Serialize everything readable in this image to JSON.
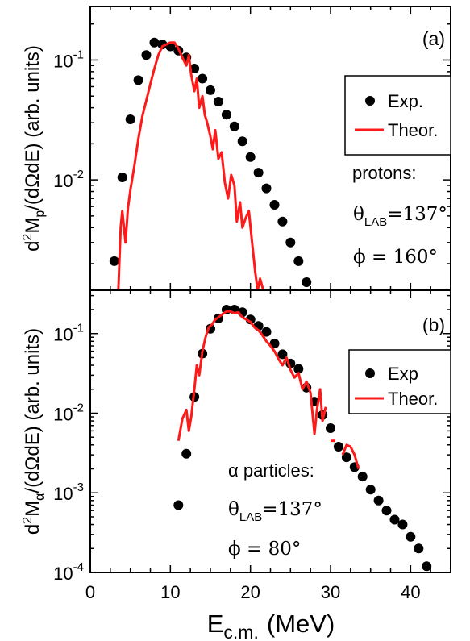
{
  "xlabel": "E",
  "xlabel_sub": "c.m.",
  "xlabel_unit": "(MeV)",
  "x_ticks": [
    "0",
    "10",
    "20",
    "30",
    "40"
  ],
  "chart_data": [
    {
      "type": "scatter",
      "panel_label": "(a)",
      "xlim": [
        0,
        45
      ],
      "ylim": [
        0.0012,
        0.28
      ],
      "yscale": "log",
      "y_ticks": [
        {
          "value": 0.1,
          "base": "10",
          "exp": "-1"
        },
        {
          "value": 0.01,
          "base": "10",
          "exp": "-2"
        }
      ],
      "ylabel": {
        "pre": "d",
        "sup": "2",
        "mid": "M",
        "sub": "p",
        "post": "/(dΩdE) (arb. units)"
      },
      "legend": {
        "position": "top-right",
        "exp_label": "Exp.",
        "theor_label": "Theor."
      },
      "annotations": {
        "species": "protons:",
        "theta_symbol": "θ",
        "theta_sub": "LAB",
        "theta_value": "=137°",
        "phi_text": "ϕ = 160°"
      },
      "series": [
        {
          "name": "Exp.",
          "kind": "points",
          "color": "#000000",
          "x": [
            3,
            4,
            5,
            6,
            7,
            8,
            9,
            10,
            11,
            12,
            13,
            14,
            15,
            16,
            17,
            18,
            19,
            20,
            21,
            22,
            23,
            24,
            25,
            26,
            27
          ],
          "y": [
            0.0021,
            0.0105,
            0.032,
            0.068,
            0.11,
            0.14,
            0.135,
            0.13,
            0.12,
            0.105,
            0.085,
            0.07,
            0.056,
            0.045,
            0.035,
            0.028,
            0.021,
            0.0155,
            0.0115,
            0.0085,
            0.0062,
            0.0045,
            0.003,
            0.0021,
            0.0014
          ]
        },
        {
          "name": "Theor.",
          "kind": "line",
          "color": "#ff1a1a",
          "x": [
            3.5,
            3.8,
            4.0,
            4.4,
            4.7,
            5.0,
            5.5,
            6.0,
            6.5,
            7.0,
            7.5,
            8.0,
            8.5,
            9.0,
            9.5,
            10.0,
            10.5,
            11.0,
            11.5,
            12.0,
            12.3,
            12.6,
            13.0,
            13.3,
            13.6,
            14.0,
            14.3,
            14.6,
            15.0,
            15.3,
            15.6,
            16.0,
            16.4,
            16.8,
            17.2,
            17.6,
            18.0,
            18.3,
            18.7,
            19.0,
            19.4,
            19.8,
            20.2,
            20.6,
            20.9,
            21.2,
            21.6
          ],
          "y": [
            0.0012,
            0.004,
            0.0055,
            0.003,
            0.0058,
            0.0082,
            0.013,
            0.022,
            0.034,
            0.046,
            0.063,
            0.085,
            0.11,
            0.13,
            0.135,
            0.14,
            0.14,
            0.125,
            0.105,
            0.09,
            0.11,
            0.075,
            0.055,
            0.07,
            0.04,
            0.05,
            0.035,
            0.03,
            0.023,
            0.018,
            0.026,
            0.015,
            0.017,
            0.0095,
            0.007,
            0.011,
            0.009,
            0.0045,
            0.0065,
            0.004,
            0.0048,
            0.0055,
            0.003,
            0.0017,
            0.0012,
            0.0015,
            0.0012
          ]
        }
      ]
    },
    {
      "type": "scatter",
      "panel_label": "(b)",
      "xlim": [
        0,
        45
      ],
      "ylim": [
        0.0001,
        0.35
      ],
      "yscale": "log",
      "y_ticks": [
        {
          "value": 0.1,
          "base": "10",
          "exp": "-1"
        },
        {
          "value": 0.01,
          "base": "10",
          "exp": "-2"
        },
        {
          "value": 0.001,
          "base": "10",
          "exp": "-3"
        },
        {
          "value": 0.0001,
          "base": "10",
          "exp": "-4"
        }
      ],
      "ylabel": {
        "pre": "d",
        "sup": "2",
        "mid": "M",
        "sub": "α",
        "post": "/(dΩdE) (arb. units)"
      },
      "legend": {
        "position": "right",
        "exp_label": "Exp",
        "theor_label": "Theor."
      },
      "annotations": {
        "species": "α particles:",
        "theta_symbol": "θ",
        "theta_sub": "LAB",
        "theta_value": "=137°",
        "phi_text": "ϕ = 80°"
      },
      "series": [
        {
          "name": "Exp",
          "kind": "points",
          "color": "#000000",
          "x": [
            11,
            12,
            13,
            14,
            15,
            16,
            17,
            18,
            19,
            20,
            21,
            22,
            23,
            24,
            25,
            26,
            27,
            28,
            29,
            30,
            31,
            32,
            33,
            34,
            35,
            36,
            37,
            38,
            39,
            40,
            41,
            42
          ],
          "y": [
            0.0007,
            0.0031,
            0.016,
            0.056,
            0.115,
            0.155,
            0.2,
            0.2,
            0.185,
            0.15,
            0.125,
            0.105,
            0.075,
            0.055,
            0.042,
            0.036,
            0.021,
            0.014,
            0.0095,
            0.0065,
            0.0038,
            0.0028,
            0.0021,
            0.0016,
            0.0011,
            0.0008,
            0.0006,
            0.00046,
            0.0004,
            0.00028,
            0.0002,
            0.00012
          ]
        },
        {
          "name": "Theor.",
          "kind": "line",
          "color": "#ff1a1a",
          "x": [
            11.0,
            11.5,
            12.0,
            12.3,
            12.6,
            13.0,
            13.3,
            13.6,
            14.0,
            14.4,
            14.8,
            15.2,
            15.6,
            16.0,
            16.5,
            17.0,
            17.5,
            18.0,
            18.5,
            19.0,
            19.5,
            20.0,
            20.5,
            21.0,
            21.5,
            22.0,
            22.5,
            23.0,
            23.5,
            24.0,
            24.5,
            25.0,
            25.5,
            26.0,
            26.5,
            27.0,
            27.5,
            28.0,
            28.3,
            28.7,
            29.0,
            29.4
          ],
          "y": [
            0.0045,
            0.0085,
            0.011,
            0.006,
            0.009,
            0.02,
            0.04,
            0.03,
            0.06,
            0.09,
            0.12,
            0.13,
            0.15,
            0.16,
            0.175,
            0.19,
            0.19,
            0.18,
            0.185,
            0.16,
            0.15,
            0.14,
            0.12,
            0.11,
            0.095,
            0.08,
            0.07,
            0.06,
            0.048,
            0.04,
            0.05,
            0.035,
            0.028,
            0.032,
            0.02,
            0.025,
            0.018,
            0.0055,
            0.011,
            0.02,
            0.008,
            0.012
          ]
        },
        {
          "name": "",
          "kind": "line",
          "color": "#ff1a1a",
          "x": [
            30.0,
            30.6
          ],
          "y": [
            0.0045,
            0.0045
          ]
        },
        {
          "name": "",
          "kind": "line",
          "color": "#ff1a1a",
          "x": [
            31.5,
            32.0,
            32.5,
            33.0,
            33.5
          ],
          "y": [
            0.003,
            0.004,
            0.0038,
            0.003,
            0.002
          ]
        }
      ]
    }
  ]
}
